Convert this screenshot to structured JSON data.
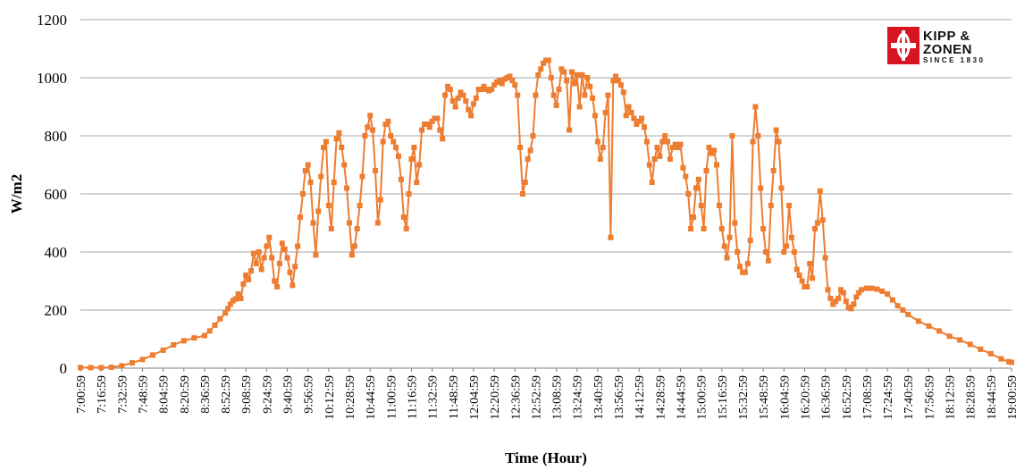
{
  "colors": {
    "series": "#ED7D31",
    "grid": "#A6A6A6",
    "logo_red": "#D7141F"
  },
  "logo": {
    "line1": "KIPP &",
    "line2": "ZONEN",
    "sub": "SINCE 1830"
  },
  "chart_data": {
    "type": "line",
    "title": "",
    "xlabel": "Time (Hour)",
    "ylabel": "W/m2",
    "ylim": [
      0,
      1200
    ],
    "yticks": [
      0,
      200,
      400,
      600,
      800,
      1000,
      1200
    ],
    "grid": "horizontal",
    "legend": "none",
    "xtick_labels": [
      "7:00:59",
      "7:16:59",
      "7:32:59",
      "7:48:59",
      "8:04:59",
      "8:20:59",
      "8:36:59",
      "8:52:59",
      "9:08:59",
      "9:24:59",
      "9:40:59",
      "9:56:59",
      "10:12:59",
      "10:28:59",
      "10:44:59",
      "11:00:59",
      "11:16:59",
      "11:32:59",
      "11:48:59",
      "12:04:59",
      "12:20:59",
      "12:36:59",
      "12:52:59",
      "13:08:59",
      "13:24:59",
      "13:40:59",
      "13:56:59",
      "14:12:59",
      "14:28:59",
      "14:44:59",
      "15:00:59",
      "15:16:59",
      "15:32:59",
      "15:48:59",
      "16:04:59",
      "16:20:59",
      "16:36:59",
      "16:52:59",
      "17:08:59",
      "17:24:59",
      "17:40:59",
      "17:56:59",
      "18:12:59",
      "18:28:59",
      "18:44:59",
      "19:00:59"
    ],
    "series": [
      {
        "points": [
          [
            "7:00:59",
            2
          ],
          [
            "7:08:59",
            2
          ],
          [
            "7:16:59",
            2
          ],
          [
            "7:24:59",
            3
          ],
          [
            "7:32:59",
            8
          ],
          [
            "7:40:59",
            18
          ],
          [
            "7:48:59",
            30
          ],
          [
            "7:56:59",
            45
          ],
          [
            "8:04:59",
            62
          ],
          [
            "8:12:59",
            80
          ],
          [
            "8:20:59",
            94
          ],
          [
            "8:28:59",
            104
          ],
          [
            "8:36:59",
            112
          ],
          [
            "8:40:59",
            128
          ],
          [
            "8:44:59",
            148
          ],
          [
            "8:48:59",
            170
          ],
          [
            "8:52:59",
            190
          ],
          [
            "8:54:59",
            205
          ],
          [
            "8:56:59",
            220
          ],
          [
            "8:58:59",
            232
          ],
          [
            "9:00:59",
            238
          ],
          [
            "9:02:59",
            255
          ],
          [
            "9:04:59",
            240
          ],
          [
            "9:06:59",
            290
          ],
          [
            "9:08:59",
            320
          ],
          [
            "9:10:59",
            305
          ],
          [
            "9:12:59",
            335
          ],
          [
            "9:14:59",
            395
          ],
          [
            "9:16:59",
            360
          ],
          [
            "9:18:59",
            400
          ],
          [
            "9:20:59",
            340
          ],
          [
            "9:22:59",
            380
          ],
          [
            "9:24:59",
            420
          ],
          [
            "9:26:59",
            450
          ],
          [
            "9:28:59",
            380
          ],
          [
            "9:30:59",
            300
          ],
          [
            "9:32:59",
            280
          ],
          [
            "9:34:59",
            360
          ],
          [
            "9:36:59",
            430
          ],
          [
            "9:38:59",
            410
          ],
          [
            "9:40:59",
            380
          ],
          [
            "9:42:59",
            330
          ],
          [
            "9:44:59",
            285
          ],
          [
            "9:46:59",
            350
          ],
          [
            "9:48:59",
            420
          ],
          [
            "9:50:59",
            520
          ],
          [
            "9:52:59",
            600
          ],
          [
            "9:54:59",
            680
          ],
          [
            "9:56:59",
            700
          ],
          [
            "9:58:59",
            640
          ],
          [
            "10:00:59",
            500
          ],
          [
            "10:02:59",
            390
          ],
          [
            "10:04:59",
            540
          ],
          [
            "10:06:59",
            660
          ],
          [
            "10:08:59",
            760
          ],
          [
            "10:10:59",
            780
          ],
          [
            "10:12:59",
            560
          ],
          [
            "10:14:59",
            480
          ],
          [
            "10:16:59",
            640
          ],
          [
            "10:18:59",
            790
          ],
          [
            "10:20:59",
            810
          ],
          [
            "10:22:59",
            760
          ],
          [
            "10:24:59",
            700
          ],
          [
            "10:26:59",
            620
          ],
          [
            "10:28:59",
            500
          ],
          [
            "10:30:59",
            390
          ],
          [
            "10:32:59",
            420
          ],
          [
            "10:34:59",
            480
          ],
          [
            "10:36:59",
            560
          ],
          [
            "10:38:59",
            660
          ],
          [
            "10:40:59",
            800
          ],
          [
            "10:42:59",
            830
          ],
          [
            "10:44:59",
            870
          ],
          [
            "10:46:59",
            820
          ],
          [
            "10:48:59",
            680
          ],
          [
            "10:50:59",
            500
          ],
          [
            "10:52:59",
            580
          ],
          [
            "10:54:59",
            780
          ],
          [
            "10:56:59",
            840
          ],
          [
            "10:58:59",
            850
          ],
          [
            "11:00:59",
            800
          ],
          [
            "11:02:59",
            780
          ],
          [
            "11:04:59",
            760
          ],
          [
            "11:06:59",
            730
          ],
          [
            "11:08:59",
            650
          ],
          [
            "11:10:59",
            520
          ],
          [
            "11:12:59",
            480
          ],
          [
            "11:14:59",
            600
          ],
          [
            "11:16:59",
            720
          ],
          [
            "11:18:59",
            760
          ],
          [
            "11:20:59",
            640
          ],
          [
            "11:22:59",
            700
          ],
          [
            "11:24:59",
            820
          ],
          [
            "11:26:59",
            840
          ],
          [
            "11:28:59",
            840
          ],
          [
            "11:30:59",
            830
          ],
          [
            "11:32:59",
            850
          ],
          [
            "11:34:59",
            860
          ],
          [
            "11:36:59",
            860
          ],
          [
            "11:38:59",
            820
          ],
          [
            "11:40:59",
            790
          ],
          [
            "11:42:59",
            940
          ],
          [
            "11:44:59",
            970
          ],
          [
            "11:46:59",
            960
          ],
          [
            "11:48:59",
            920
          ],
          [
            "11:50:59",
            900
          ],
          [
            "11:52:59",
            930
          ],
          [
            "11:54:59",
            950
          ],
          [
            "11:56:59",
            940
          ],
          [
            "11:58:59",
            920
          ],
          [
            "12:00:59",
            890
          ],
          [
            "12:02:59",
            870
          ],
          [
            "12:04:59",
            910
          ],
          [
            "12:06:59",
            930
          ],
          [
            "12:08:59",
            960
          ],
          [
            "12:10:59",
            960
          ],
          [
            "12:12:59",
            970
          ],
          [
            "12:14:59",
            960
          ],
          [
            "12:16:59",
            955
          ],
          [
            "12:18:59",
            960
          ],
          [
            "12:20:59",
            975
          ],
          [
            "12:22:59",
            985
          ],
          [
            "12:24:59",
            990
          ],
          [
            "12:26:59",
            980
          ],
          [
            "12:28:59",
            995
          ],
          [
            "12:30:59",
            1000
          ],
          [
            "12:32:59",
            1005
          ],
          [
            "12:34:59",
            990
          ],
          [
            "12:36:59",
            975
          ],
          [
            "12:38:59",
            940
          ],
          [
            "12:40:59",
            760
          ],
          [
            "12:42:59",
            600
          ],
          [
            "12:44:59",
            640
          ],
          [
            "12:46:59",
            720
          ],
          [
            "12:48:59",
            750
          ],
          [
            "12:50:59",
            800
          ],
          [
            "12:52:59",
            940
          ],
          [
            "12:54:59",
            1010
          ],
          [
            "12:56:59",
            1030
          ],
          [
            "12:58:59",
            1050
          ],
          [
            "13:00:59",
            1060
          ],
          [
            "13:02:59",
            1060
          ],
          [
            "13:04:59",
            1000
          ],
          [
            "13:06:59",
            940
          ],
          [
            "13:08:59",
            905
          ],
          [
            "13:10:59",
            960
          ],
          [
            "13:12:59",
            1030
          ],
          [
            "13:14:59",
            1020
          ],
          [
            "13:16:59",
            990
          ],
          [
            "13:18:59",
            820
          ],
          [
            "13:20:59",
            1020
          ],
          [
            "13:22:59",
            980
          ],
          [
            "13:24:59",
            1010
          ],
          [
            "13:26:59",
            900
          ],
          [
            "13:28:59",
            1010
          ],
          [
            "13:30:59",
            940
          ],
          [
            "13:32:59",
            1000
          ],
          [
            "13:34:59",
            970
          ],
          [
            "13:36:59",
            930
          ],
          [
            "13:38:59",
            870
          ],
          [
            "13:40:59",
            780
          ],
          [
            "13:42:59",
            720
          ],
          [
            "13:44:59",
            760
          ],
          [
            "13:46:59",
            880
          ],
          [
            "13:48:59",
            940
          ],
          [
            "13:50:59",
            450
          ],
          [
            "13:52:59",
            990
          ],
          [
            "13:54:59",
            1005
          ],
          [
            "13:56:59",
            990
          ],
          [
            "13:58:59",
            975
          ],
          [
            "14:00:59",
            950
          ],
          [
            "14:02:59",
            870
          ],
          [
            "14:04:59",
            900
          ],
          [
            "14:06:59",
            880
          ],
          [
            "14:08:59",
            860
          ],
          [
            "14:10:59",
            840
          ],
          [
            "14:12:59",
            850
          ],
          [
            "14:14:59",
            860
          ],
          [
            "14:16:59",
            830
          ],
          [
            "14:18:59",
            780
          ],
          [
            "14:20:59",
            700
          ],
          [
            "14:22:59",
            640
          ],
          [
            "14:24:59",
            720
          ],
          [
            "14:26:59",
            760
          ],
          [
            "14:28:59",
            730
          ],
          [
            "14:30:59",
            780
          ],
          [
            "14:32:59",
            800
          ],
          [
            "14:34:59",
            780
          ],
          [
            "14:36:59",
            720
          ],
          [
            "14:38:59",
            760
          ],
          [
            "14:40:59",
            770
          ],
          [
            "14:42:59",
            760
          ],
          [
            "14:44:59",
            770
          ],
          [
            "14:46:59",
            690
          ],
          [
            "14:48:59",
            660
          ],
          [
            "14:50:59",
            600
          ],
          [
            "14:52:59",
            480
          ],
          [
            "14:54:59",
            520
          ],
          [
            "14:56:59",
            620
          ],
          [
            "14:58:59",
            650
          ],
          [
            "15:00:59",
            560
          ],
          [
            "15:02:59",
            480
          ],
          [
            "15:04:59",
            680
          ],
          [
            "15:06:59",
            760
          ],
          [
            "15:08:59",
            740
          ],
          [
            "15:10:59",
            750
          ],
          [
            "15:12:59",
            700
          ],
          [
            "15:14:59",
            560
          ],
          [
            "15:16:59",
            480
          ],
          [
            "15:18:59",
            420
          ],
          [
            "15:20:59",
            380
          ],
          [
            "15:22:59",
            450
          ],
          [
            "15:24:59",
            800
          ],
          [
            "15:26:59",
            500
          ],
          [
            "15:28:59",
            400
          ],
          [
            "15:30:59",
            350
          ],
          [
            "15:32:59",
            330
          ],
          [
            "15:34:59",
            330
          ],
          [
            "15:36:59",
            360
          ],
          [
            "15:38:59",
            440
          ],
          [
            "15:40:59",
            780
          ],
          [
            "15:42:59",
            900
          ],
          [
            "15:44:59",
            800
          ],
          [
            "15:46:59",
            620
          ],
          [
            "15:48:59",
            480
          ],
          [
            "15:50:59",
            400
          ],
          [
            "15:52:59",
            370
          ],
          [
            "15:54:59",
            560
          ],
          [
            "15:56:59",
            680
          ],
          [
            "15:58:59",
            820
          ],
          [
            "16:00:59",
            780
          ],
          [
            "16:02:59",
            620
          ],
          [
            "16:04:59",
            400
          ],
          [
            "16:06:59",
            420
          ],
          [
            "16:08:59",
            560
          ],
          [
            "16:10:59",
            450
          ],
          [
            "16:12:59",
            400
          ],
          [
            "16:14:59",
            340
          ],
          [
            "16:16:59",
            320
          ],
          [
            "16:18:59",
            300
          ],
          [
            "16:20:59",
            280
          ],
          [
            "16:22:59",
            280
          ],
          [
            "16:24:59",
            360
          ],
          [
            "16:26:59",
            310
          ],
          [
            "16:28:59",
            480
          ],
          [
            "16:30:59",
            500
          ],
          [
            "16:32:59",
            610
          ],
          [
            "16:34:59",
            510
          ],
          [
            "16:36:59",
            380
          ],
          [
            "16:38:59",
            270
          ],
          [
            "16:40:59",
            240
          ],
          [
            "16:42:59",
            220
          ],
          [
            "16:44:59",
            230
          ],
          [
            "16:46:59",
            240
          ],
          [
            "16:48:59",
            270
          ],
          [
            "16:50:59",
            260
          ],
          [
            "16:52:59",
            230
          ],
          [
            "16:54:59",
            210
          ],
          [
            "16:56:59",
            205
          ],
          [
            "16:58:59",
            220
          ],
          [
            "17:00:59",
            245
          ],
          [
            "17:02:59",
            260
          ],
          [
            "17:04:59",
            270
          ],
          [
            "17:08:59",
            275
          ],
          [
            "17:12:59",
            275
          ],
          [
            "17:16:59",
            272
          ],
          [
            "17:20:59",
            265
          ],
          [
            "17:24:59",
            255
          ],
          [
            "17:28:59",
            235
          ],
          [
            "17:32:59",
            215
          ],
          [
            "17:36:59",
            200
          ],
          [
            "17:40:59",
            185
          ],
          [
            "17:48:59",
            162
          ],
          [
            "17:56:59",
            145
          ],
          [
            "18:04:59",
            128
          ],
          [
            "18:12:59",
            110
          ],
          [
            "18:20:59",
            97
          ],
          [
            "18:28:59",
            82
          ],
          [
            "18:36:59",
            65
          ],
          [
            "18:44:59",
            50
          ],
          [
            "18:52:59",
            32
          ],
          [
            "18:58:59",
            22
          ],
          [
            "19:00:59",
            20
          ]
        ]
      }
    ]
  }
}
